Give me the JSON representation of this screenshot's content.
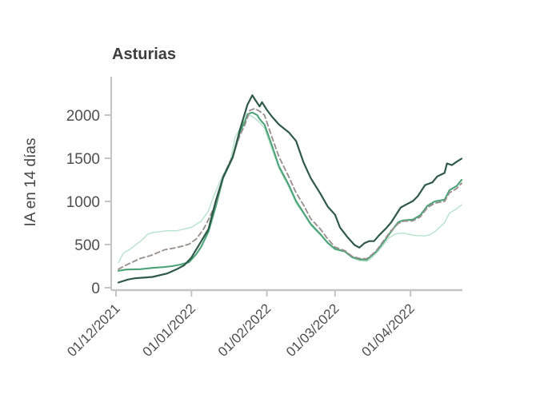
{
  "chart_data": {
    "type": "line",
    "title": "Asturias",
    "xlabel": "",
    "ylabel": "IA en 14 días",
    "grid": false,
    "legend": "none",
    "ylim": [
      0,
      2250
    ],
    "y_ticks": [
      0,
      500,
      1000,
      1500,
      2000
    ],
    "x_unit_days_from": "01/12/2021",
    "x_range_days": [
      0,
      142
    ],
    "x_ticks": {
      "days": [
        0,
        31,
        62,
        90,
        121
      ],
      "labels": [
        "01/12/2021",
        "01/01/2022",
        "01/02/2022",
        "01/03/2022",
        "01/04/2022"
      ]
    },
    "axis_color": "#c4c4c4",
    "series": [
      {
        "name": "light-green-line",
        "color": "#b7e2cc",
        "width": 1.4,
        "dash": "",
        "points": [
          [
            1,
            290
          ],
          [
            3,
            400
          ],
          [
            6,
            450
          ],
          [
            8,
            495
          ],
          [
            11,
            560
          ],
          [
            13,
            620
          ],
          [
            15,
            640
          ],
          [
            18,
            650
          ],
          [
            21,
            660
          ],
          [
            25,
            660
          ],
          [
            28,
            680
          ],
          [
            31,
            700
          ],
          [
            35,
            770
          ],
          [
            38,
            890
          ],
          [
            40,
            1050
          ],
          [
            43,
            1250
          ],
          [
            47,
            1470
          ],
          [
            49,
            1750
          ],
          [
            52,
            1900
          ],
          [
            54,
            1975
          ],
          [
            55,
            2000
          ],
          [
            57,
            1965
          ],
          [
            59,
            1915
          ],
          [
            61,
            1850
          ],
          [
            64,
            1610
          ],
          [
            67,
            1380
          ],
          [
            71,
            1165
          ],
          [
            74,
            975
          ],
          [
            77,
            860
          ],
          [
            80,
            720
          ],
          [
            84,
            610
          ],
          [
            87,
            510
          ],
          [
            90,
            440
          ],
          [
            94,
            415
          ],
          [
            97,
            345
          ],
          [
            100,
            315
          ],
          [
            103,
            305
          ],
          [
            105,
            345
          ],
          [
            107,
            400
          ],
          [
            110,
            500
          ],
          [
            112,
            575
          ],
          [
            115,
            625
          ],
          [
            118,
            635
          ],
          [
            120,
            620
          ],
          [
            123,
            605
          ],
          [
            127,
            600
          ],
          [
            129,
            615
          ],
          [
            131,
            650
          ],
          [
            133,
            700
          ],
          [
            135,
            755
          ],
          [
            137,
            865
          ],
          [
            140,
            915
          ],
          [
            142,
            960
          ]
        ]
      },
      {
        "name": "medium-green-line",
        "color": "#4ba377",
        "width": 2.1,
        "dash": "",
        "points": [
          [
            1,
            195
          ],
          [
            4,
            210
          ],
          [
            10,
            215
          ],
          [
            15,
            230
          ],
          [
            20,
            240
          ],
          [
            23,
            250
          ],
          [
            26,
            265
          ],
          [
            30,
            295
          ],
          [
            33,
            390
          ],
          [
            35,
            475
          ],
          [
            38,
            650
          ],
          [
            41,
            940
          ],
          [
            44,
            1270
          ],
          [
            48,
            1510
          ],
          [
            51,
            1810
          ],
          [
            53,
            1930
          ],
          [
            54,
            2010
          ],
          [
            56,
            2030
          ],
          [
            58,
            2000
          ],
          [
            59,
            1955
          ],
          [
            61,
            1890
          ],
          [
            64,
            1655
          ],
          [
            67,
            1405
          ],
          [
            71,
            1190
          ],
          [
            74,
            1005
          ],
          [
            77,
            870
          ],
          [
            80,
            740
          ],
          [
            84,
            620
          ],
          [
            87,
            520
          ],
          [
            90,
            450
          ],
          [
            94,
            420
          ],
          [
            97,
            355
          ],
          [
            100,
            330
          ],
          [
            103,
            325
          ],
          [
            105,
            370
          ],
          [
            107,
            420
          ],
          [
            110,
            530
          ],
          [
            113,
            650
          ],
          [
            116,
            760
          ],
          [
            118,
            780
          ],
          [
            122,
            790
          ],
          [
            125,
            840
          ],
          [
            128,
            950
          ],
          [
            131,
            1000
          ],
          [
            135,
            1020
          ],
          [
            137,
            1130
          ],
          [
            140,
            1180
          ],
          [
            142,
            1250
          ]
        ]
      },
      {
        "name": "dashed-gray-line",
        "color": "#9b9190",
        "width": 1.9,
        "dash": "6 4",
        "points": [
          [
            1,
            215
          ],
          [
            4,
            260
          ],
          [
            7,
            300
          ],
          [
            10,
            340
          ],
          [
            14,
            370
          ],
          [
            17,
            405
          ],
          [
            20,
            440
          ],
          [
            24,
            460
          ],
          [
            27,
            480
          ],
          [
            30,
            505
          ],
          [
            33,
            565
          ],
          [
            36,
            680
          ],
          [
            38,
            790
          ],
          [
            41,
            975
          ],
          [
            44,
            1290
          ],
          [
            48,
            1530
          ],
          [
            51,
            1770
          ],
          [
            53,
            1890
          ],
          [
            55,
            2055
          ],
          [
            57,
            2075
          ],
          [
            59,
            2045
          ],
          [
            61,
            2000
          ],
          [
            64,
            1750
          ],
          [
            67,
            1515
          ],
          [
            71,
            1285
          ],
          [
            74,
            1100
          ],
          [
            77,
            960
          ],
          [
            80,
            800
          ],
          [
            84,
            680
          ],
          [
            87,
            565
          ],
          [
            90,
            470
          ],
          [
            94,
            430
          ],
          [
            97,
            365
          ],
          [
            100,
            340
          ],
          [
            103,
            335
          ],
          [
            105,
            380
          ],
          [
            107,
            430
          ],
          [
            110,
            545
          ],
          [
            113,
            660
          ],
          [
            116,
            745
          ],
          [
            118,
            770
          ],
          [
            122,
            775
          ],
          [
            125,
            820
          ],
          [
            128,
            930
          ],
          [
            131,
            980
          ],
          [
            135,
            1000
          ],
          [
            137,
            1100
          ],
          [
            140,
            1150
          ],
          [
            142,
            1210
          ]
        ]
      },
      {
        "name": "dark-green-line",
        "color": "#2f5949",
        "width": 2.2,
        "dash": "",
        "points": [
          [
            1,
            60
          ],
          [
            5,
            95
          ],
          [
            8,
            110
          ],
          [
            15,
            125
          ],
          [
            21,
            165
          ],
          [
            25,
            215
          ],
          [
            28,
            260
          ],
          [
            31,
            350
          ],
          [
            34,
            490
          ],
          [
            38,
            680
          ],
          [
            41,
            1005
          ],
          [
            44,
            1280
          ],
          [
            48,
            1515
          ],
          [
            51,
            1840
          ],
          [
            54,
            2120
          ],
          [
            56,
            2230
          ],
          [
            57,
            2185
          ],
          [
            59,
            2100
          ],
          [
            60,
            2150
          ],
          [
            62,
            2060
          ],
          [
            64,
            1985
          ],
          [
            67,
            1890
          ],
          [
            71,
            1800
          ],
          [
            74,
            1700
          ],
          [
            77,
            1455
          ],
          [
            80,
            1270
          ],
          [
            84,
            1090
          ],
          [
            87,
            940
          ],
          [
            90,
            845
          ],
          [
            92,
            700
          ],
          [
            95,
            590
          ],
          [
            98,
            495
          ],
          [
            100,
            465
          ],
          [
            102,
            515
          ],
          [
            104,
            540
          ],
          [
            106,
            540
          ],
          [
            108,
            605
          ],
          [
            111,
            690
          ],
          [
            113,
            755
          ],
          [
            117,
            930
          ],
          [
            119,
            960
          ],
          [
            122,
            1005
          ],
          [
            124,
            1060
          ],
          [
            127,
            1190
          ],
          [
            130,
            1220
          ],
          [
            132,
            1290
          ],
          [
            135,
            1330
          ],
          [
            136,
            1440
          ],
          [
            138,
            1420
          ],
          [
            140,
            1460
          ],
          [
            142,
            1495
          ]
        ]
      }
    ]
  }
}
